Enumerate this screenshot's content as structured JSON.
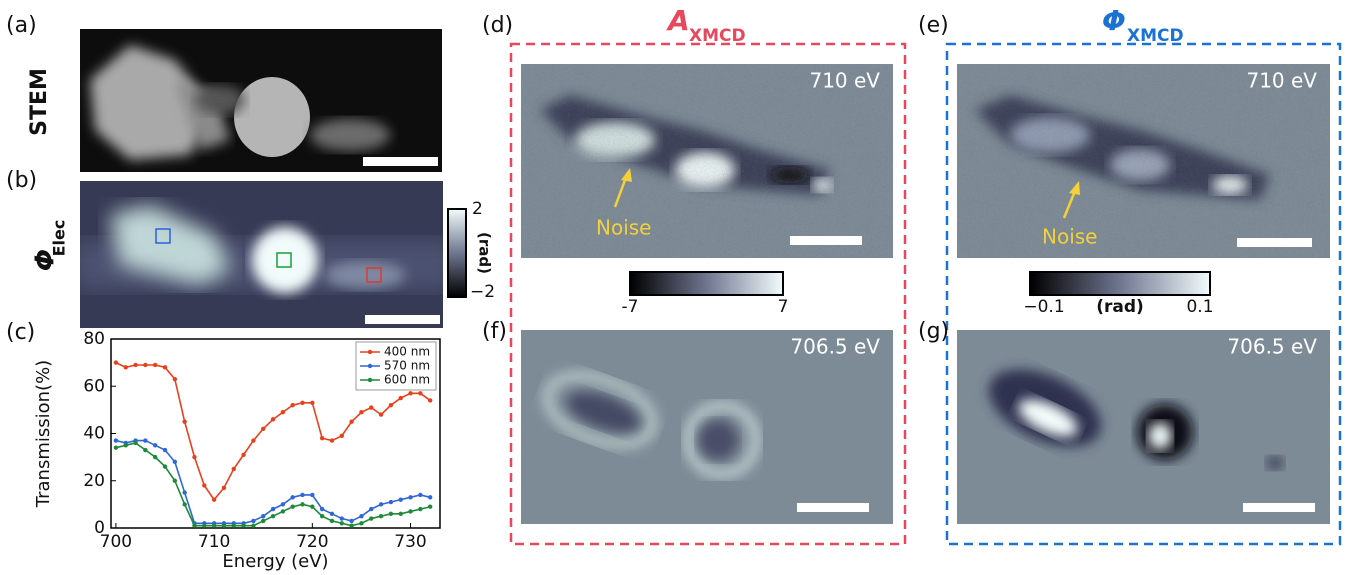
{
  "panels": {
    "a": {
      "label": "(a)",
      "ylabel": "STEM"
    },
    "b": {
      "label": "(b)",
      "ylabel_main": "Φ",
      "ylabel_sub": "Elec",
      "colorbar_top": "2",
      "colorbar_bottom": "−2",
      "colorbar_unit": "(rad)"
    },
    "c": {
      "label": "(c)"
    },
    "d": {
      "label": "(d)",
      "energy": "710 eV",
      "annotation": "Noise"
    },
    "e": {
      "label": "(e)",
      "energy": "710 eV",
      "annotation": "Noise"
    },
    "f": {
      "label": "(f)",
      "energy": "706.5 eV"
    },
    "g": {
      "label": "(g)",
      "energy": "706.5 eV"
    },
    "amp_group": {
      "title_main": "A",
      "title_sub": "XMCD",
      "colorbar_min": "-7",
      "colorbar_max": "7"
    },
    "phase_group": {
      "title_main": "Φ",
      "title_sub": "XMCD",
      "colorbar_min": "−0.1",
      "colorbar_max": "0.1",
      "colorbar_unit": "(rad)"
    }
  },
  "chart_data": {
    "type": "line",
    "xlabel": "Energy (eV)",
    "ylabel": "Transmission(%)",
    "x": [
      700,
      701,
      702,
      703,
      704,
      705,
      706,
      707,
      708,
      709,
      710,
      711,
      712,
      713,
      714,
      715,
      716,
      717,
      718,
      719,
      720,
      721,
      722,
      723,
      724,
      725,
      726,
      727,
      728,
      729,
      730,
      731,
      732
    ],
    "series": [
      {
        "name": "400 nm",
        "color": "#e8401c",
        "values": [
          70,
          68,
          69,
          69,
          69,
          68,
          63,
          45,
          30,
          18,
          12,
          17,
          25,
          31,
          37,
          42,
          46,
          49,
          52,
          53,
          53,
          38,
          37,
          39,
          45,
          49,
          51,
          48,
          52,
          55,
          57,
          57,
          54
        ]
      },
      {
        "name": "570 nm",
        "color": "#2f66d8",
        "values": [
          37,
          36,
          37,
          37,
          35,
          33,
          28,
          15,
          2,
          2,
          2,
          2,
          2,
          2,
          3,
          5,
          8,
          10,
          13,
          14,
          14,
          8,
          6,
          4,
          3,
          5,
          8,
          10,
          11,
          12,
          13,
          14,
          13
        ]
      },
      {
        "name": "600 nm",
        "color": "#1f8a3a",
        "values": [
          34,
          35,
          36,
          33,
          30,
          26,
          20,
          10,
          1,
          1,
          1,
          1,
          1,
          1,
          1,
          3,
          5,
          7,
          9,
          10,
          9,
          5,
          3,
          2,
          1,
          2,
          4,
          5,
          6,
          6,
          7,
          8,
          9
        ]
      }
    ],
    "xlim": [
      699.5,
      733
    ],
    "ylim": [
      0,
      80
    ],
    "xticks": [
      700,
      710,
      720,
      730
    ],
    "yticks": [
      0,
      20,
      40,
      60,
      80
    ],
    "legend": "upper right"
  }
}
